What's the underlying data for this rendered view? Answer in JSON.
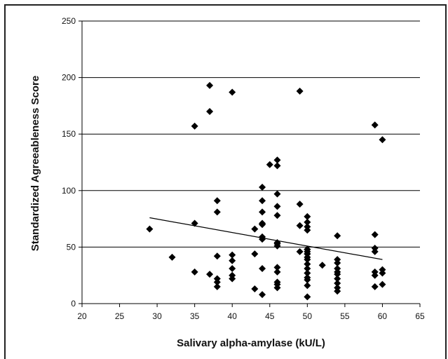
{
  "chart_data": {
    "type": "scatter",
    "title": "",
    "xlabel": "Salivary alpha-amylase (kU/L)",
    "ylabel": "Standardized Agreeableness Score",
    "xlim": [
      20,
      65
    ],
    "ylim": [
      0,
      250
    ],
    "xticks": [
      "20",
      "25",
      "30",
      "35",
      "40",
      "45",
      "50",
      "55",
      "60",
      "65"
    ],
    "yticks": [
      "0",
      "50",
      "100",
      "150",
      "200",
      "250"
    ],
    "grid": "horizontal",
    "legend": "none",
    "marker": "diamond",
    "marker_color": "#000000",
    "trendline": {
      "x": [
        29,
        60
      ],
      "y": [
        76,
        39
      ]
    },
    "series": [
      {
        "x": [
          29,
          32,
          35,
          35,
          35,
          37,
          37,
          37,
          38,
          38,
          38,
          38,
          38,
          38,
          40,
          40,
          40,
          40,
          40,
          40,
          43,
          43,
          43,
          44,
          44,
          44,
          44,
          44,
          44,
          44,
          44,
          44,
          44,
          45,
          46,
          46,
          46,
          46,
          46,
          46,
          46,
          46,
          46,
          46,
          46,
          46,
          46,
          49,
          49,
          49,
          49,
          50,
          50,
          50,
          50,
          50,
          50,
          50,
          50,
          50,
          50,
          50,
          50,
          50,
          50,
          50,
          50,
          50,
          50,
          52,
          54,
          54,
          54,
          54,
          54,
          54,
          54,
          54,
          54,
          54,
          59,
          59,
          59,
          59,
          59,
          59,
          59,
          60,
          60,
          60,
          60
        ],
        "y": [
          66,
          41,
          157,
          71,
          28,
          193,
          170,
          26,
          91,
          81,
          42,
          22,
          19,
          15,
          187,
          43,
          38,
          31,
          25,
          22,
          66,
          44,
          13,
          103,
          91,
          81,
          71,
          59,
          57,
          31,
          8,
          70,
          70,
          123,
          127,
          122,
          97,
          86,
          78,
          54,
          51,
          32,
          28,
          19,
          17,
          14,
          53,
          188,
          88,
          69,
          46,
          77,
          72,
          68,
          65,
          48,
          46,
          44,
          39,
          35,
          31,
          27,
          23,
          21,
          16,
          6,
          48,
          44,
          41,
          34,
          60,
          39,
          36,
          31,
          28,
          26,
          22,
          18,
          14,
          11,
          158,
          61,
          49,
          46,
          28,
          25,
          15,
          145,
          30,
          27,
          17
        ]
      }
    ]
  }
}
